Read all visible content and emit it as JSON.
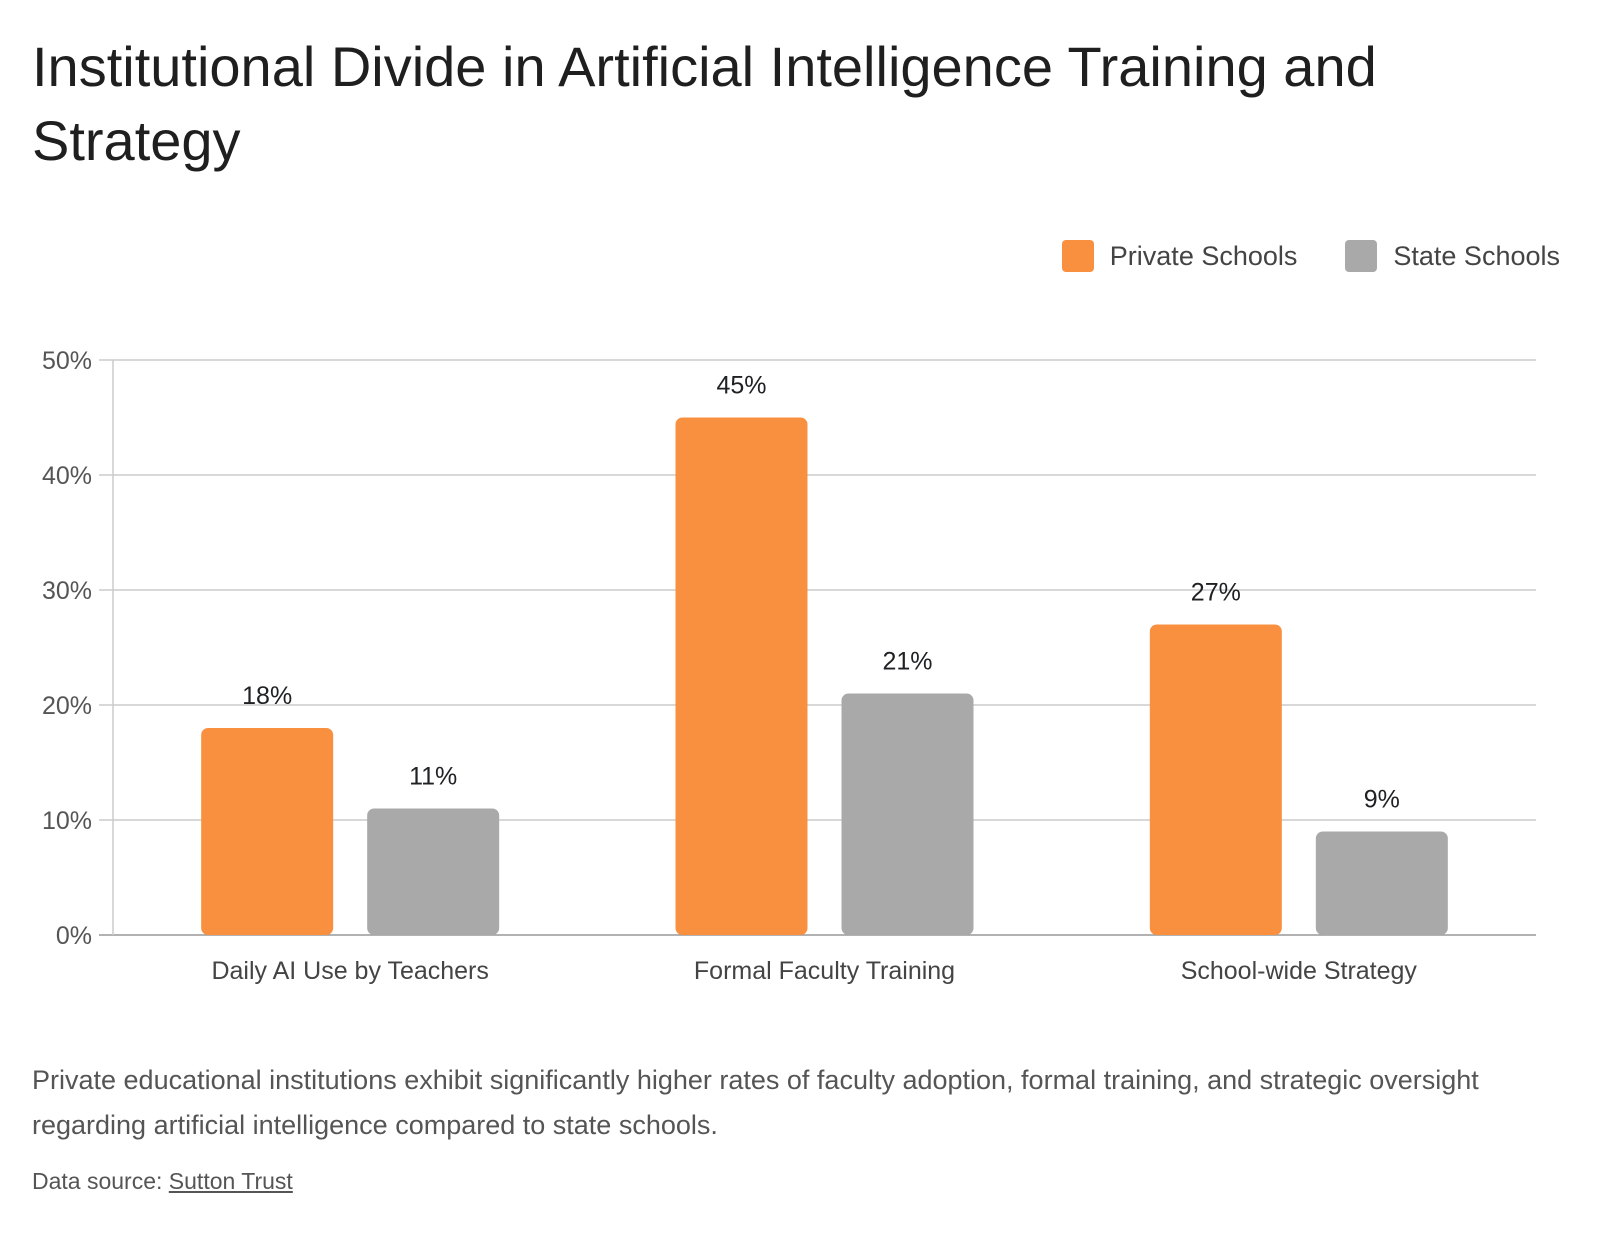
{
  "chart_data": {
    "type": "bar",
    "title": "Institutional Divide in Artificial Intelligence Training and Strategy",
    "categories": [
      "Daily AI Use by Teachers",
      "Formal Faculty Training",
      "School-wide Strategy"
    ],
    "series": [
      {
        "name": "Private Schools",
        "values": [
          18,
          45,
          27
        ],
        "labels": [
          "18%",
          "45%",
          "27%"
        ],
        "color": "#f99040"
      },
      {
        "name": "State Schools",
        "values": [
          11,
          21,
          9
        ],
        "labels": [
          "11%",
          "21%",
          "9%"
        ],
        "color": "#a9a9a9"
      }
    ],
    "ylim": [
      0,
      50
    ],
    "yticks": [
      0,
      10,
      20,
      30,
      40,
      50
    ],
    "ytick_labels": [
      "0%",
      "10%",
      "20%",
      "30%",
      "40%",
      "50%"
    ],
    "xlabel": "",
    "ylabel": "",
    "grid": true,
    "legend_position": "top-right"
  },
  "description": "Private educational institutions exhibit significantly higher rates of faculty adoption, formal training, and strategic oversight regarding artificial intelligence compared to state schools.",
  "source": {
    "prefix": "Data source: ",
    "link_text": "Sutton Trust"
  }
}
